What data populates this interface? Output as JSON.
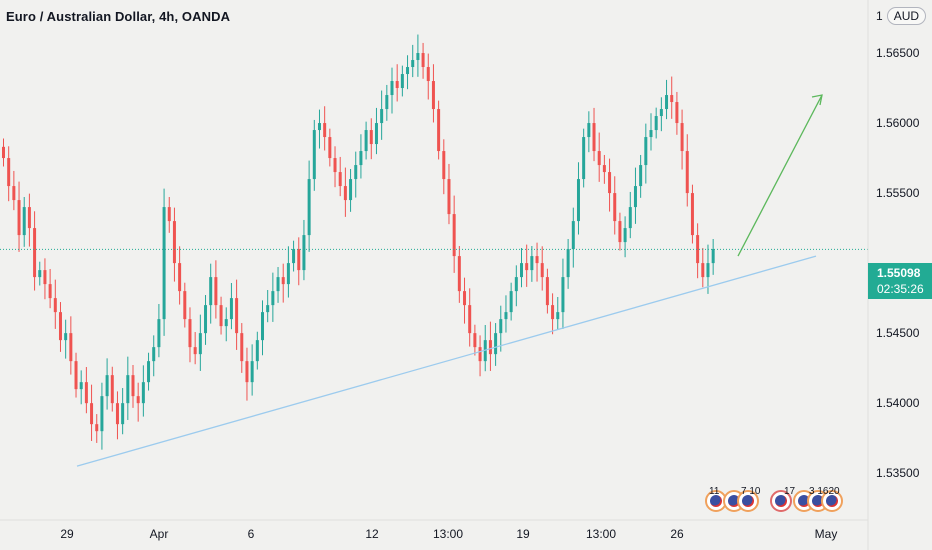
{
  "chart": {
    "title": "Euro / Australian Dollar, 4h, OANDA",
    "currency": "AUD",
    "currency_prefix": "1",
    "last_price": "1.55098",
    "countdown": "02:35:26",
    "colors": {
      "up": "#26a69a",
      "down": "#ef5350",
      "trendline": "#9ccbee",
      "arrow": "#5cb85c",
      "last_price_bg": "#22ab94",
      "background": "#f1f1ef"
    }
  },
  "price_axis": [
    "1.56500",
    "1.56000",
    "1.55500",
    "1.54500",
    "1.54000",
    "1.53500"
  ],
  "time_axis": [
    "29",
    "Apr",
    "6",
    "12",
    "13:00",
    "19",
    "13:00",
    "26",
    "May"
  ],
  "events": {
    "groups": [
      "11",
      "7 10",
      "17",
      "3 1620"
    ]
  },
  "chart_data": {
    "type": "candlestick",
    "ylim": [
      1.5318,
      1.5675
    ],
    "closes": [
      1.5575,
      1.5555,
      1.5545,
      1.552,
      1.554,
      1.5525,
      1.549,
      1.5495,
      1.5485,
      1.5475,
      1.5465,
      1.5445,
      1.545,
      1.543,
      1.541,
      1.5415,
      1.54,
      1.5385,
      1.538,
      1.5405,
      1.542,
      1.54,
      1.5385,
      1.54,
      1.542,
      1.5405,
      1.54,
      1.5415,
      1.543,
      1.544,
      1.546,
      1.554,
      1.553,
      1.55,
      1.548,
      1.546,
      1.544,
      1.5435,
      1.545,
      1.547,
      1.549,
      1.547,
      1.5455,
      1.546,
      1.5475,
      1.545,
      1.543,
      1.5415,
      1.543,
      1.5445,
      1.5465,
      1.547,
      1.548,
      1.549,
      1.5485,
      1.55,
      1.551,
      1.5495,
      1.552,
      1.556,
      1.5595,
      1.56,
      1.559,
      1.5575,
      1.5565,
      1.5555,
      1.5545,
      1.556,
      1.557,
      1.558,
      1.5595,
      1.5585,
      1.56,
      1.561,
      1.562,
      1.563,
      1.5625,
      1.5635,
      1.564,
      1.5645,
      1.565,
      1.564,
      1.563,
      1.561,
      1.558,
      1.556,
      1.5535,
      1.5505,
      1.548,
      1.547,
      1.545,
      1.544,
      1.543,
      1.5445,
      1.5435,
      1.545,
      1.546,
      1.5465,
      1.548,
      1.549,
      1.55,
      1.5495,
      1.5505,
      1.55,
      1.549,
      1.547,
      1.546,
      1.5465,
      1.549,
      1.551,
      1.553,
      1.556,
      1.559,
      1.56,
      1.558,
      1.557,
      1.5565,
      1.555,
      1.553,
      1.5515,
      1.5525,
      1.554,
      1.5555,
      1.557,
      1.559,
      1.5595,
      1.5605,
      1.561,
      1.562,
      1.5615,
      1.56,
      1.558,
      1.555,
      1.552,
      1.55,
      1.549,
      1.55,
      1.551
    ],
    "trendline": {
      "from": {
        "x": "27 Mar",
        "y": 1.5355
      },
      "to": {
        "x": "28 Apr",
        "y": 1.5505
      }
    },
    "projection_arrow": {
      "from": {
        "x": "27 Apr",
        "y": 1.5505
      },
      "to": {
        "x": "29 Apr",
        "y": 1.562
      }
    }
  }
}
